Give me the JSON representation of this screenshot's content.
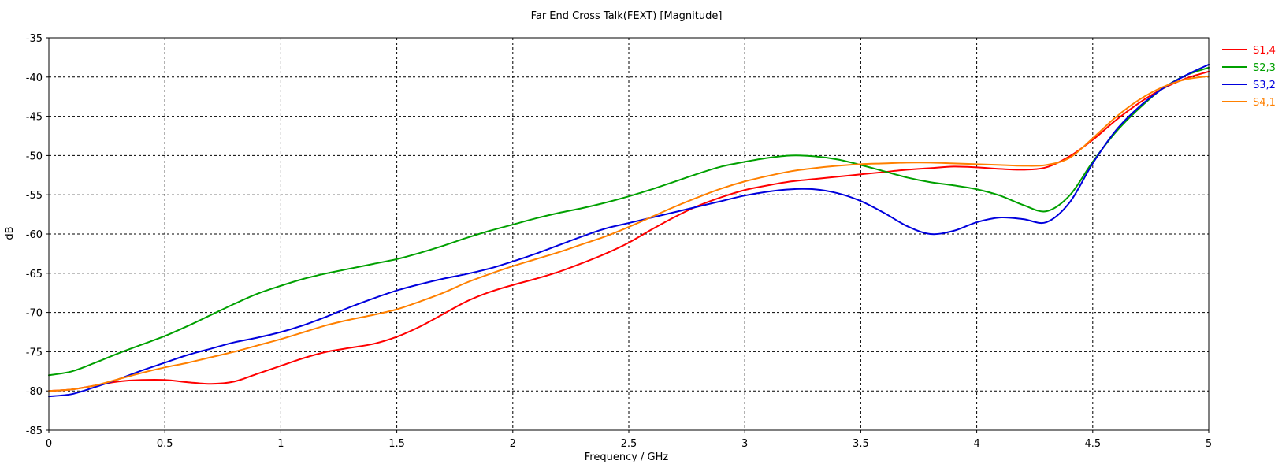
{
  "chart_data": {
    "type": "line",
    "title": "Far End Cross Talk(FEXT) [Magnitude]",
    "xlabel": "Frequency / GHz",
    "ylabel": "dB",
    "xlim": [
      0,
      5
    ],
    "ylim": [
      -85,
      -35
    ],
    "xticks": [
      0,
      0.5,
      1,
      1.5,
      2,
      2.5,
      3,
      3.5,
      4,
      4.5,
      5
    ],
    "xtick_labels": [
      "0",
      "0.5",
      "1",
      "1.5",
      "2",
      "2.5",
      "3",
      "3.5",
      "4",
      "4.5",
      "5"
    ],
    "yticks": [
      -35,
      -40,
      -45,
      -50,
      -55,
      -60,
      -65,
      -70,
      -75,
      -80,
      -85
    ],
    "ytick_labels": [
      "-35",
      "-40",
      "-45",
      "-50",
      "-55",
      "-60",
      "-65",
      "-70",
      "-75",
      "-80",
      "-85"
    ],
    "grid": true,
    "legend_position": "right",
    "series": [
      {
        "name": "S1,4",
        "color": "#ff0000",
        "x": [
          0,
          0.1,
          0.2,
          0.3,
          0.4,
          0.5,
          0.6,
          0.7,
          0.8,
          0.9,
          1.0,
          1.1,
          1.2,
          1.3,
          1.4,
          1.5,
          1.6,
          1.7,
          1.8,
          1.9,
          2.0,
          2.1,
          2.2,
          2.3,
          2.4,
          2.5,
          2.6,
          2.7,
          2.8,
          2.9,
          3.0,
          3.1,
          3.2,
          3.3,
          3.4,
          3.5,
          3.6,
          3.7,
          3.8,
          3.9,
          4.0,
          4.1,
          4.2,
          4.3,
          4.4,
          4.5,
          4.6,
          4.7,
          4.8,
          4.9,
          5.0
        ],
        "y": [
          -80.0,
          -79.8,
          -79.3,
          -78.8,
          -78.6,
          -78.6,
          -78.9,
          -79.1,
          -78.8,
          -77.8,
          -76.8,
          -75.8,
          -75.0,
          -74.5,
          -74.0,
          -73.1,
          -71.8,
          -70.2,
          -68.6,
          -67.4,
          -66.5,
          -65.7,
          -64.8,
          -63.7,
          -62.5,
          -61.1,
          -59.4,
          -57.8,
          -56.4,
          -55.3,
          -54.4,
          -53.8,
          -53.3,
          -53.0,
          -52.7,
          -52.4,
          -52.1,
          -51.8,
          -51.6,
          -51.4,
          -51.5,
          -51.7,
          -51.8,
          -51.5,
          -50.1,
          -48.0,
          -45.5,
          -43.3,
          -41.5,
          -40.2,
          -39.3
        ]
      },
      {
        "name": "S2,3",
        "color": "#00a000",
        "x": [
          0,
          0.1,
          0.2,
          0.3,
          0.4,
          0.5,
          0.6,
          0.7,
          0.8,
          0.9,
          1.0,
          1.1,
          1.2,
          1.3,
          1.4,
          1.5,
          1.6,
          1.7,
          1.8,
          1.9,
          2.0,
          2.1,
          2.2,
          2.3,
          2.4,
          2.5,
          2.6,
          2.7,
          2.8,
          2.9,
          3.0,
          3.1,
          3.2,
          3.3,
          3.4,
          3.5,
          3.6,
          3.7,
          3.8,
          3.9,
          4.0,
          4.1,
          4.2,
          4.3,
          4.4,
          4.5,
          4.6,
          4.7,
          4.8,
          4.9,
          5.0
        ],
        "y": [
          -78.0,
          -77.5,
          -76.4,
          -75.2,
          -74.1,
          -73.0,
          -71.7,
          -70.3,
          -68.9,
          -67.6,
          -66.6,
          -65.7,
          -65.0,
          -64.4,
          -63.8,
          -63.2,
          -62.4,
          -61.5,
          -60.5,
          -59.6,
          -58.8,
          -58.0,
          -57.3,
          -56.7,
          -56.0,
          -55.2,
          -54.3,
          -53.3,
          -52.3,
          -51.4,
          -50.8,
          -50.3,
          -50.0,
          -50.1,
          -50.5,
          -51.2,
          -52.0,
          -52.8,
          -53.4,
          -53.8,
          -54.3,
          -55.1,
          -56.3,
          -57.1,
          -55.1,
          -50.8,
          -47.0,
          -44.0,
          -41.5,
          -39.8,
          -38.8
        ]
      },
      {
        "name": "S3,2",
        "color": "#0000dd",
        "x": [
          0,
          0.1,
          0.2,
          0.3,
          0.4,
          0.5,
          0.6,
          0.7,
          0.8,
          0.9,
          1.0,
          1.1,
          1.2,
          1.3,
          1.4,
          1.5,
          1.6,
          1.7,
          1.8,
          1.9,
          2.0,
          2.1,
          2.2,
          2.3,
          2.4,
          2.5,
          2.6,
          2.7,
          2.8,
          2.9,
          3.0,
          3.1,
          3.2,
          3.3,
          3.4,
          3.5,
          3.6,
          3.7,
          3.8,
          3.9,
          4.0,
          4.1,
          4.2,
          4.3,
          4.4,
          4.5,
          4.6,
          4.7,
          4.8,
          4.9,
          5.0
        ],
        "y": [
          -80.7,
          -80.4,
          -79.5,
          -78.5,
          -77.4,
          -76.4,
          -75.4,
          -74.6,
          -73.8,
          -73.2,
          -72.5,
          -71.6,
          -70.5,
          -69.3,
          -68.2,
          -67.2,
          -66.4,
          -65.7,
          -65.1,
          -64.4,
          -63.5,
          -62.5,
          -61.4,
          -60.3,
          -59.3,
          -58.6,
          -57.9,
          -57.2,
          -56.5,
          -55.8,
          -55.1,
          -54.6,
          -54.3,
          -54.3,
          -54.8,
          -55.8,
          -57.3,
          -59.0,
          -60.0,
          -59.6,
          -58.5,
          -57.9,
          -58.1,
          -58.5,
          -56.0,
          -51.0,
          -46.8,
          -43.8,
          -41.5,
          -39.8,
          -38.4
        ]
      },
      {
        "name": "S4,1",
        "color": "#ff8000",
        "x": [
          0,
          0.1,
          0.2,
          0.3,
          0.4,
          0.5,
          0.6,
          0.7,
          0.8,
          0.9,
          1.0,
          1.1,
          1.2,
          1.3,
          1.4,
          1.5,
          1.6,
          1.7,
          1.8,
          1.9,
          2.0,
          2.1,
          2.2,
          2.3,
          2.4,
          2.5,
          2.6,
          2.7,
          2.8,
          2.9,
          3.0,
          3.1,
          3.2,
          3.3,
          3.4,
          3.5,
          3.6,
          3.7,
          3.8,
          3.9,
          4.0,
          4.1,
          4.2,
          4.3,
          4.4,
          4.5,
          4.6,
          4.7,
          4.8,
          4.9,
          5.0
        ],
        "y": [
          -80.0,
          -79.8,
          -79.3,
          -78.5,
          -77.7,
          -77.0,
          -76.4,
          -75.7,
          -75.0,
          -74.2,
          -73.4,
          -72.5,
          -71.6,
          -70.9,
          -70.3,
          -69.6,
          -68.6,
          -67.5,
          -66.2,
          -65.1,
          -64.1,
          -63.2,
          -62.3,
          -61.3,
          -60.3,
          -59.1,
          -57.8,
          -56.5,
          -55.3,
          -54.2,
          -53.3,
          -52.6,
          -52.0,
          -51.6,
          -51.3,
          -51.1,
          -51.0,
          -50.9,
          -50.9,
          -51.0,
          -51.1,
          -51.2,
          -51.3,
          -51.2,
          -50.3,
          -47.8,
          -45.1,
          -42.9,
          -41.3,
          -40.3,
          -39.9
        ]
      }
    ]
  }
}
